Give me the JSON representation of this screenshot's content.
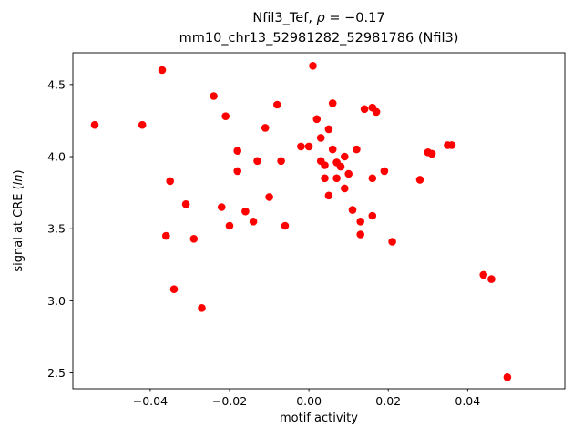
{
  "figure": {
    "background": "#ffffff"
  },
  "chart_data": {
    "type": "scatter",
    "title_parts": {
      "prefix": "Nfil3_Tef, ",
      "italic": "ρ",
      "suffix": " = −0.17"
    },
    "title_line2": "mm10_chr13_52981282_52981786 (Nfil3)",
    "xlabel": "motif activity",
    "ylabel_parts": {
      "prefix": "signal at CRE (",
      "italic": "ln",
      "suffix": ")"
    },
    "marker_color": "#ff0000",
    "axis_color": "#000000",
    "xlim": [
      -0.0595,
      0.0645
    ],
    "ylim": [
      2.39,
      4.72
    ],
    "x_ticks": [
      -0.04,
      -0.02,
      0.0,
      0.02,
      0.04
    ],
    "x_tick_labels": [
      "−0.04",
      "−0.02",
      "0.00",
      "0.02",
      "0.04"
    ],
    "y_ticks": [
      2.5,
      3.0,
      3.5,
      4.0,
      4.5
    ],
    "y_tick_labels": [
      "2.5",
      "3.0",
      "3.5",
      "4.0",
      "4.5"
    ],
    "grid": false,
    "legend": null,
    "points": [
      [
        -0.054,
        4.22
      ],
      [
        -0.042,
        4.22
      ],
      [
        -0.037,
        4.6
      ],
      [
        -0.036,
        3.45
      ],
      [
        -0.035,
        3.83
      ],
      [
        -0.034,
        3.08
      ],
      [
        -0.031,
        3.67
      ],
      [
        -0.029,
        3.43
      ],
      [
        -0.027,
        2.95
      ],
      [
        -0.024,
        4.42
      ],
      [
        -0.022,
        3.65
      ],
      [
        -0.021,
        4.28
      ],
      [
        -0.02,
        3.52
      ],
      [
        -0.018,
        4.04
      ],
      [
        -0.018,
        3.9
      ],
      [
        -0.016,
        3.62
      ],
      [
        -0.014,
        3.55
      ],
      [
        -0.013,
        3.97
      ],
      [
        -0.011,
        4.2
      ],
      [
        -0.01,
        3.72
      ],
      [
        -0.008,
        4.36
      ],
      [
        -0.007,
        3.97
      ],
      [
        -0.006,
        3.52
      ],
      [
        -0.002,
        4.07
      ],
      [
        0.0,
        4.07
      ],
      [
        0.001,
        4.63
      ],
      [
        0.002,
        4.26
      ],
      [
        0.003,
        4.13
      ],
      [
        0.003,
        3.97
      ],
      [
        0.004,
        3.94
      ],
      [
        0.004,
        3.85
      ],
      [
        0.005,
        4.19
      ],
      [
        0.005,
        3.73
      ],
      [
        0.006,
        4.37
      ],
      [
        0.006,
        4.05
      ],
      [
        0.007,
        3.96
      ],
      [
        0.007,
        3.85
      ],
      [
        0.008,
        3.93
      ],
      [
        0.009,
        4.0
      ],
      [
        0.009,
        3.78
      ],
      [
        0.01,
        3.88
      ],
      [
        0.011,
        3.63
      ],
      [
        0.012,
        4.05
      ],
      [
        0.013,
        3.55
      ],
      [
        0.013,
        3.46
      ],
      [
        0.014,
        4.33
      ],
      [
        0.016,
        4.34
      ],
      [
        0.017,
        4.31
      ],
      [
        0.016,
        3.85
      ],
      [
        0.016,
        3.59
      ],
      [
        0.019,
        3.9
      ],
      [
        0.021,
        3.41
      ],
      [
        0.028,
        3.84
      ],
      [
        0.03,
        4.03
      ],
      [
        0.031,
        4.02
      ],
      [
        0.035,
        4.08
      ],
      [
        0.036,
        4.08
      ],
      [
        0.044,
        3.18
      ],
      [
        0.046,
        3.15
      ],
      [
        0.05,
        2.47
      ]
    ]
  }
}
